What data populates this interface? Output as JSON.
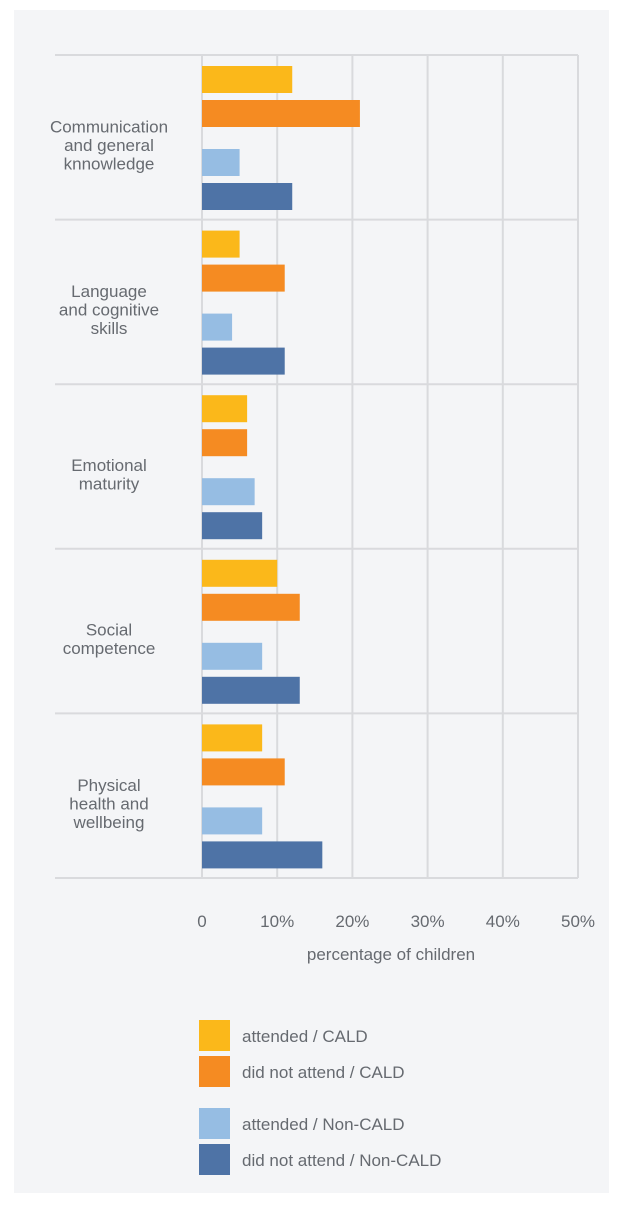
{
  "chart_data": {
    "type": "bar",
    "orientation": "horizontal",
    "categories": [
      "Communication and general knnowledge",
      "Language and cognitive skills",
      "Emotional maturity",
      "Social competence",
      "Physical health and wellbeing"
    ],
    "category_lines": [
      [
        "Communication",
        "and general",
        "knnowledge"
      ],
      [
        "Language",
        "and cognitive",
        "skills"
      ],
      [
        "Emotional",
        "maturity"
      ],
      [
        "Social",
        "competence"
      ],
      [
        "Physical",
        "health and",
        "wellbeing"
      ]
    ],
    "series": [
      {
        "name": "attended / CALD",
        "color": "#fbb81a",
        "values": [
          12,
          5,
          6,
          10,
          8
        ]
      },
      {
        "name": "did not attend / CALD",
        "color": "#f58b22",
        "values": [
          21,
          11,
          6,
          13,
          11
        ]
      },
      {
        "name": "attended / Non-CALD",
        "color": "#96bde3",
        "values": [
          5,
          4,
          7,
          8,
          8
        ]
      },
      {
        "name": "did not attend / Non-CALD",
        "color": "#4e73a6",
        "values": [
          12,
          11,
          8,
          13,
          16
        ]
      }
    ],
    "x_ticks": [
      "0",
      "10%",
      "20%",
      "30%",
      "40%",
      "50%"
    ],
    "xlim": [
      0,
      50
    ],
    "xlabel": "percentage of children",
    "grid": true,
    "legend_position": "bottom"
  }
}
